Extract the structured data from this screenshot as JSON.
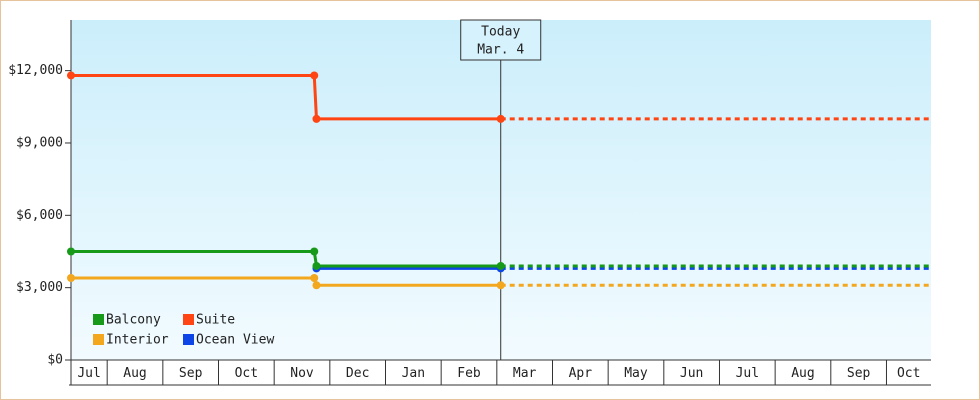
{
  "chart_data": {
    "type": "line",
    "annotation": [
      "Today",
      "Mar. 4"
    ],
    "today_x": 8.07,
    "x": [
      0.35,
      4.72,
      4.76,
      8.07,
      15.8
    ],
    "xlim": [
      0.35,
      15.8
    ],
    "xticks": [
      1,
      2,
      3,
      4,
      5,
      6,
      7,
      8,
      9,
      10,
      11,
      12,
      13,
      14,
      15
    ],
    "categories": [
      "Jul",
      "Aug",
      "Sep",
      "Oct",
      "Nov",
      "Dec",
      "Jan",
      "Feb",
      "Mar",
      "Apr",
      "May",
      "Jun",
      "Jul",
      "Aug",
      "Sep",
      "Oct"
    ],
    "ylim": [
      0,
      14100
    ],
    "yticks": [
      {
        "value": 0,
        "label": "$0"
      },
      {
        "value": 3000,
        "label": "$3,000"
      },
      {
        "value": 6000,
        "label": "$6,000"
      },
      {
        "value": 9000,
        "label": "$9,000"
      },
      {
        "value": 12000,
        "label": "$12,000"
      }
    ],
    "grid": false,
    "legend": "bottom-left",
    "series": [
      {
        "name": "Balcony",
        "color": "#17991a",
        "values": [
          4500,
          4500,
          3900,
          3900,
          3900
        ]
      },
      {
        "name": "Suite",
        "color": "#ff4513",
        "values": [
          11800,
          11800,
          10000,
          10000,
          10000
        ]
      },
      {
        "name": "Interior",
        "color": "#f2a71e",
        "values": [
          3400,
          3400,
          3100,
          3100,
          3100
        ]
      },
      {
        "name": "Ocean View",
        "color": "#0d45e6",
        "values": [
          null,
          null,
          3800,
          3800,
          3800
        ]
      }
    ]
  }
}
